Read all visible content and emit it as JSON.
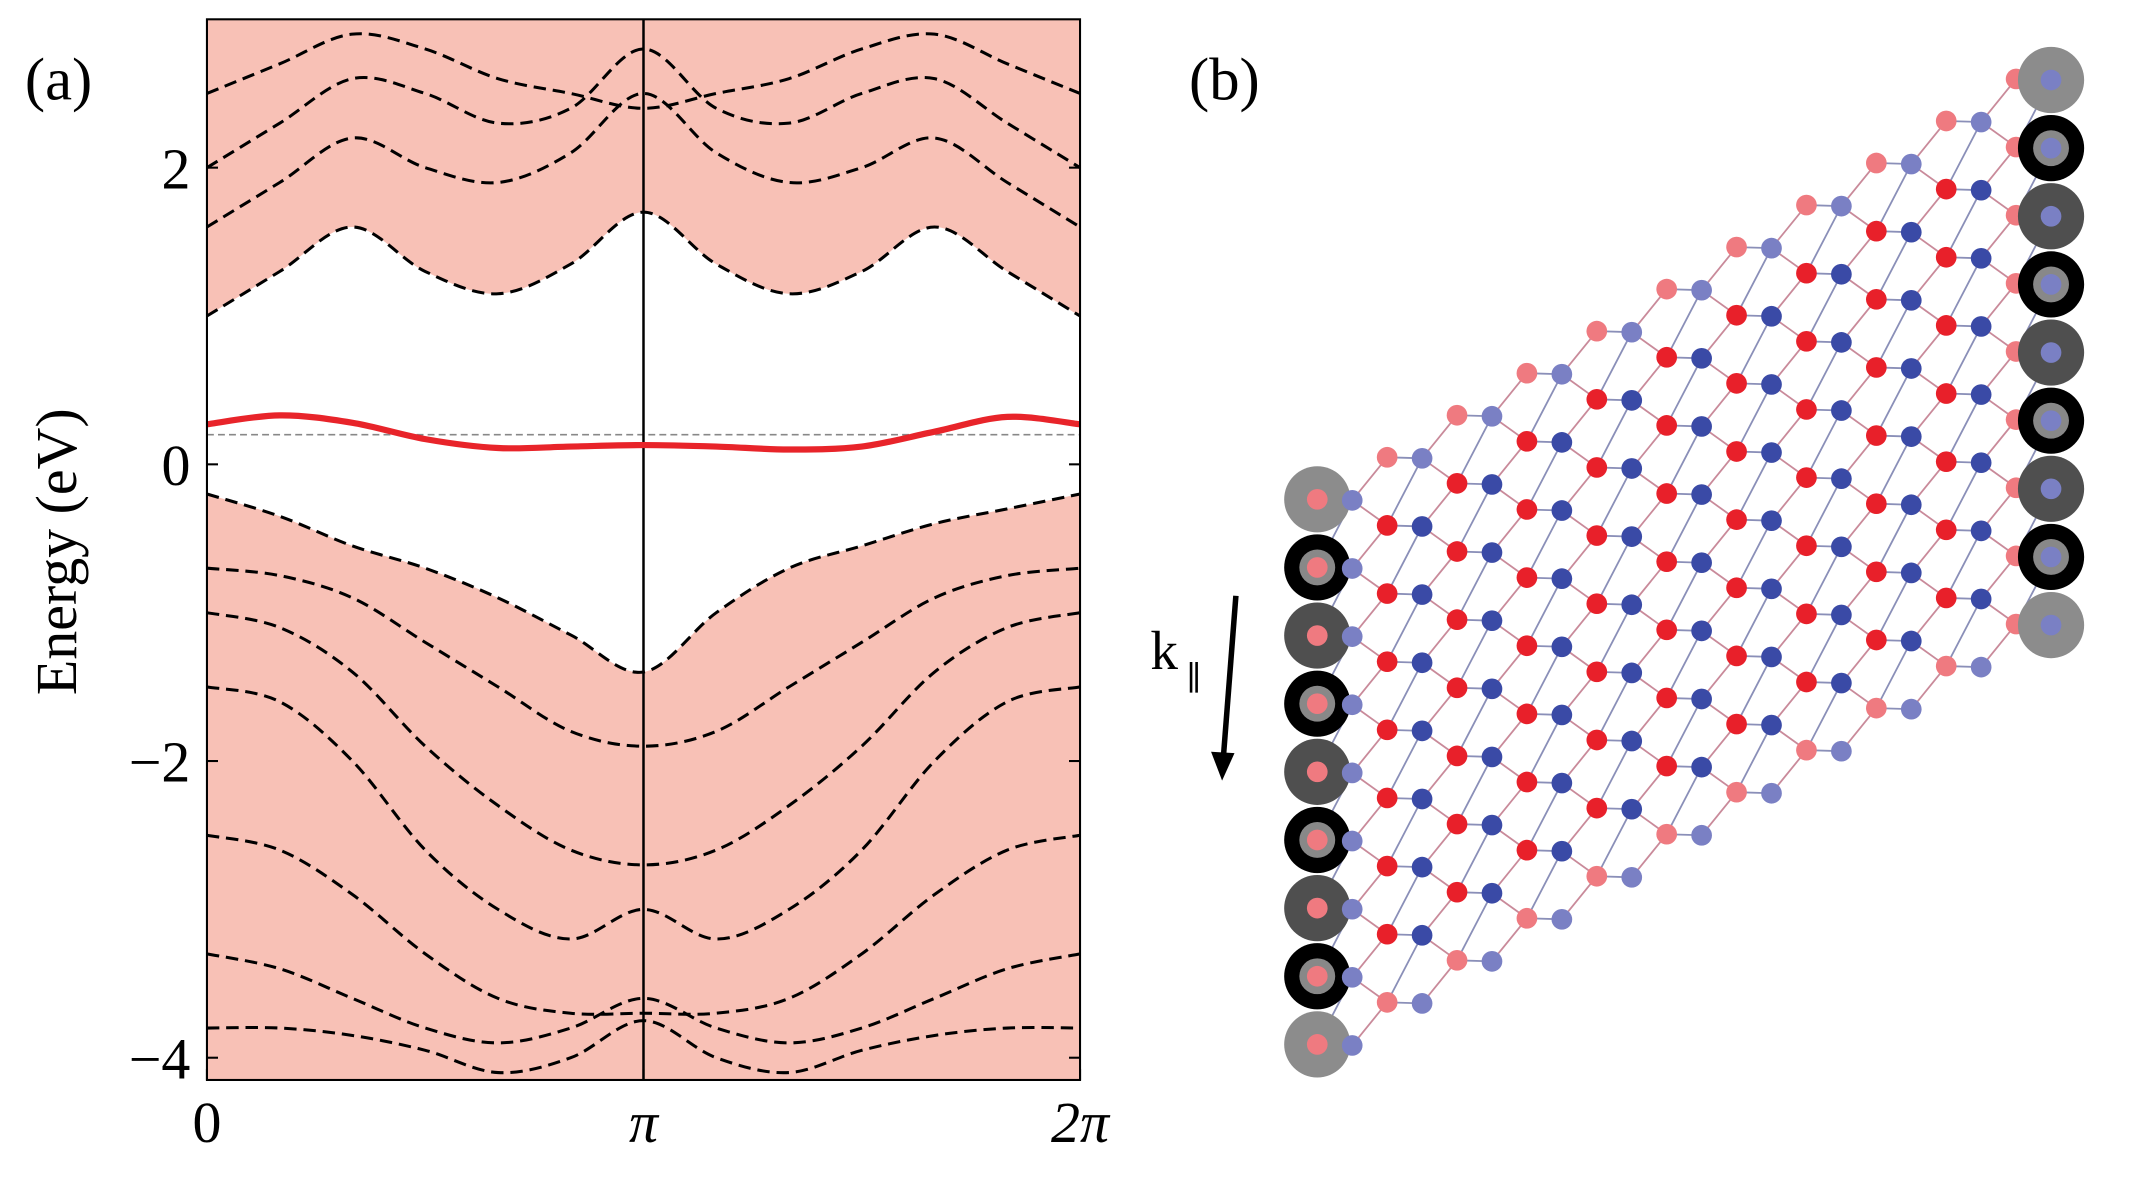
{
  "chart_data": {
    "type": "line",
    "panel_label": "(a)",
    "y_label": "Energy (eV)",
    "x": [
      0,
      0.5236,
      1.0472,
      1.5708,
      2.0944,
      2.618,
      3.1416,
      3.6652,
      4.1888,
      4.7124,
      5.236,
      5.7596,
      6.2832
    ],
    "xlim": [
      0,
      6.2832
    ],
    "xticks": [
      0,
      {
        "value": 3.1416,
        "label": "π"
      },
      {
        "value": 6.2832,
        "label": "2π"
      }
    ],
    "ylim": [
      -4.15,
      3.0
    ],
    "yticks": [
      {
        "value": -4,
        "label": "−4"
      },
      {
        "value": -2,
        "label": "−2"
      },
      0,
      2
    ],
    "hline": 0.2,
    "band_regions": [
      {
        "color": "#f8c1b6",
        "fill_to": "top",
        "values": [
          1.0,
          1.3,
          1.6,
          1.3,
          1.15,
          1.35,
          1.7,
          1.35,
          1.15,
          1.3,
          1.6,
          1.3,
          1.0
        ]
      },
      {
        "color": "#f8c1b6",
        "fill_to": "bottom",
        "values": [
          -0.2,
          -0.35,
          -0.55,
          -0.7,
          -0.9,
          -1.15,
          -1.4,
          -1.0,
          -0.7,
          -0.55,
          -0.4,
          -0.3,
          -0.2
        ]
      }
    ],
    "bands": [
      {
        "color": "#000000",
        "values": [
          1.0,
          1.3,
          1.6,
          1.3,
          1.15,
          1.35,
          1.7,
          1.35,
          1.15,
          1.3,
          1.6,
          1.3,
          1.0
        ]
      },
      {
        "color": "#000000",
        "values": [
          1.6,
          1.9,
          2.2,
          2.0,
          1.9,
          2.1,
          2.5,
          2.1,
          1.9,
          2.0,
          2.2,
          1.9,
          1.6
        ]
      },
      {
        "color": "#000000",
        "values": [
          2.0,
          2.3,
          2.6,
          2.5,
          2.3,
          2.4,
          2.8,
          2.4,
          2.3,
          2.5,
          2.6,
          2.3,
          2.0
        ]
      },
      {
        "color": "#000000",
        "values": [
          2.5,
          2.7,
          2.9,
          2.8,
          2.6,
          2.5,
          2.4,
          2.5,
          2.6,
          2.8,
          2.9,
          2.7,
          2.5
        ]
      },
      {
        "color": "#000000",
        "values": [
          -0.2,
          -0.35,
          -0.55,
          -0.7,
          -0.9,
          -1.15,
          -1.4,
          -1.0,
          -0.7,
          -0.55,
          -0.4,
          -0.3,
          -0.2
        ]
      },
      {
        "color": "#000000",
        "values": [
          -0.7,
          -0.75,
          -0.9,
          -1.2,
          -1.5,
          -1.8,
          -1.9,
          -1.8,
          -1.5,
          -1.2,
          -0.9,
          -0.75,
          -0.7
        ]
      },
      {
        "color": "#000000",
        "values": [
          -1.0,
          -1.1,
          -1.4,
          -1.9,
          -2.3,
          -2.6,
          -2.7,
          -2.6,
          -2.3,
          -1.9,
          -1.4,
          -1.1,
          -1.0
        ]
      },
      {
        "color": "#000000",
        "values": [
          -1.5,
          -1.6,
          -2.0,
          -2.6,
          -3.0,
          -3.2,
          -3.0,
          -3.2,
          -3.0,
          -2.6,
          -2.0,
          -1.6,
          -1.5
        ]
      },
      {
        "color": "#000000",
        "values": [
          -2.5,
          -2.6,
          -2.9,
          -3.3,
          -3.6,
          -3.7,
          -3.7,
          -3.7,
          -3.6,
          -3.3,
          -2.9,
          -2.6,
          -2.5
        ]
      },
      {
        "color": "#000000",
        "values": [
          -3.3,
          -3.4,
          -3.6,
          -3.8,
          -3.9,
          -3.8,
          -3.6,
          -3.8,
          -3.9,
          -3.8,
          -3.6,
          -3.4,
          -3.3
        ]
      },
      {
        "color": "#000000",
        "values": [
          -3.8,
          -3.8,
          -3.85,
          -3.95,
          -4.1,
          -4.0,
          -3.75,
          -4.0,
          -4.1,
          -3.95,
          -3.85,
          -3.8,
          -3.8
        ]
      }
    ],
    "series": [
      {
        "color": "#e8242a",
        "values": [
          0.27,
          0.33,
          0.28,
          0.17,
          0.11,
          0.12,
          0.13,
          0.12,
          0.1,
          0.12,
          0.22,
          0.32,
          0.27
        ]
      }
    ]
  },
  "diagram": {
    "panel_label": "(b)",
    "arrow_label": "k",
    "arrow_label_sub": "∥"
  }
}
